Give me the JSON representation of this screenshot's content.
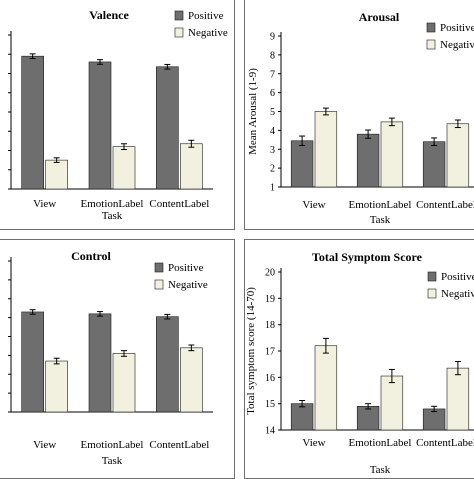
{
  "colors": {
    "positive": "#6e6e6e",
    "negative": "#f2f1df",
    "stroke": "#1a1a1a",
    "frame": "#6f6f6f"
  },
  "chart_data": [
    {
      "type": "bar",
      "title": "Valence",
      "categories": [
        "View",
        "EmotionLabel",
        "ContentLabel"
      ],
      "xlabel": "Task",
      "ylabel": "",
      "ylim": [
        1,
        9
      ],
      "yticks": [],
      "legend": "top-right",
      "series": [
        {
          "name": "Positive",
          "values": [
            7.9,
            7.6,
            7.35
          ],
          "errors": [
            0.12,
            0.12,
            0.12
          ]
        },
        {
          "name": "Negative",
          "values": [
            2.5,
            3.2,
            3.35
          ],
          "errors": [
            0.12,
            0.15,
            0.18
          ]
        }
      ]
    },
    {
      "type": "bar",
      "title": "Arousal",
      "categories": [
        "View",
        "EmotionLabel",
        "ContentLabel"
      ],
      "xlabel": "Task",
      "ylabel": "Mean Arousal (1-9)",
      "ylim": [
        1,
        9
      ],
      "yticks": [
        1,
        2,
        3,
        4,
        5,
        6,
        7,
        8,
        9
      ],
      "legend": "top-right",
      "series": [
        {
          "name": "Positive",
          "values": [
            3.45,
            3.8,
            3.4
          ],
          "errors": [
            0.25,
            0.22,
            0.2
          ]
        },
        {
          "name": "Negative",
          "values": [
            5.0,
            4.45,
            4.35
          ],
          "errors": [
            0.18,
            0.2,
            0.2
          ]
        }
      ]
    },
    {
      "type": "bar",
      "title": "Control",
      "categories": [
        "View",
        "EmotionLabel",
        "ContentLabel"
      ],
      "xlabel": "Task",
      "ylabel": "",
      "ylim": [
        1,
        9
      ],
      "yticks": [],
      "legend": "top-right",
      "series": [
        {
          "name": "Positive",
          "values": [
            6.3,
            6.2,
            6.05
          ],
          "errors": [
            0.12,
            0.12,
            0.12
          ]
        },
        {
          "name": "Negative",
          "values": [
            3.7,
            4.1,
            4.4
          ],
          "errors": [
            0.15,
            0.15,
            0.15
          ]
        }
      ]
    },
    {
      "type": "bar",
      "title": "Total Symptom Score",
      "categories": [
        "View",
        "EmotionLabel",
        "ContentLabel"
      ],
      "xlabel": "Task",
      "ylabel": "Total symptom score (14-70)",
      "ylim": [
        14,
        20
      ],
      "yticks": [
        14,
        15,
        16,
        17,
        18,
        19,
        20
      ],
      "legend": "top-right",
      "series": [
        {
          "name": "Positive",
          "values": [
            15.0,
            14.9,
            14.8
          ],
          "errors": [
            0.12,
            0.1,
            0.1
          ]
        },
        {
          "name": "Negative",
          "values": [
            17.2,
            16.05,
            16.35
          ],
          "errors": [
            0.28,
            0.25,
            0.25
          ]
        }
      ]
    }
  ]
}
